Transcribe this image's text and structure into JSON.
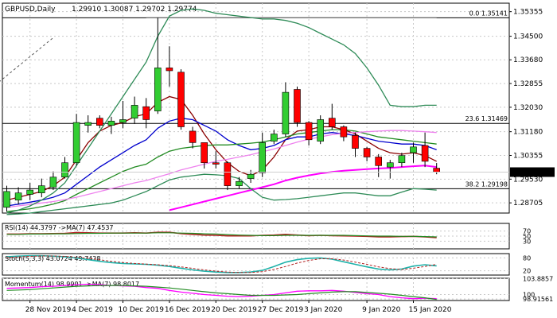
{
  "chart_data": {
    "type": "candlestick",
    "main": {
      "symbol_label": "GBPUSD,Daily",
      "ohlc_label": "1.29910 1.30087 1.29702 1.29774",
      "current_price": 1.29774,
      "current_price_label": "1.29774",
      "ylim": [
        1.2835,
        1.3565
      ],
      "y_ticks": [
        1.35355,
        1.345,
        1.3368,
        1.32855,
        1.3203,
        1.3118,
        1.30355,
        1.2953,
        1.28705
      ],
      "y_tick_labels": [
        "1.35355",
        "1.34500",
        "1.33680",
        "1.32855",
        "1.32030",
        "1.31180",
        "1.30355",
        "1.29530",
        "1.28705"
      ],
      "fib_levels": [
        {
          "label": "0.0 1.35141",
          "value": 1.35141
        },
        {
          "label": "23.6 1.31469",
          "value": 1.31469
        },
        {
          "label": "38.2 1.29198",
          "value": 1.29198
        }
      ],
      "candles": [
        {
          "date": "2019-11-26",
          "open": 1.2855,
          "high": 1.293,
          "low": 1.284,
          "close": 1.291
        },
        {
          "date": "2019-11-27",
          "open": 1.288,
          "high": 1.2925,
          "low": 1.2865,
          "close": 1.2905
        },
        {
          "date": "2019-11-28",
          "open": 1.29,
          "high": 1.294,
          "low": 1.288,
          "close": 1.2915
        },
        {
          "date": "2019-11-29",
          "open": 1.2905,
          "high": 1.2955,
          "low": 1.289,
          "close": 1.293
        },
        {
          "date": "2019-12-02",
          "open": 1.2925,
          "high": 1.298,
          "low": 1.2915,
          "close": 1.296
        },
        {
          "date": "2019-12-03",
          "open": 1.296,
          "high": 1.303,
          "low": 1.2955,
          "close": 1.301
        },
        {
          "date": "2019-12-04",
          "open": 1.301,
          "high": 1.318,
          "low": 1.3,
          "close": 1.315
        },
        {
          "date": "2019-12-05",
          "open": 1.314,
          "high": 1.3175,
          "low": 1.3115,
          "close": 1.315
        },
        {
          "date": "2019-12-06",
          "open": 1.3165,
          "high": 1.3175,
          "low": 1.313,
          "close": 1.314
        },
        {
          "date": "2019-12-09",
          "open": 1.314,
          "high": 1.317,
          "low": 1.311,
          "close": 1.3155
        },
        {
          "date": "2019-12-10",
          "open": 1.315,
          "high": 1.3225,
          "low": 1.313,
          "close": 1.316
        },
        {
          "date": "2019-12-11",
          "open": 1.3165,
          "high": 1.324,
          "low": 1.3145,
          "close": 1.321
        },
        {
          "date": "2019-12-12",
          "open": 1.3205,
          "high": 1.3235,
          "low": 1.313,
          "close": 1.316
        },
        {
          "date": "2019-12-13",
          "open": 1.319,
          "high": 1.3515,
          "low": 1.318,
          "close": 1.334
        },
        {
          "date": "2019-12-16",
          "open": 1.334,
          "high": 1.3415,
          "low": 1.3275,
          "close": 1.333
        },
        {
          "date": "2019-12-17",
          "open": 1.3325,
          "high": 1.3335,
          "low": 1.3125,
          "close": 1.3135
        },
        {
          "date": "2019-12-18",
          "open": 1.312,
          "high": 1.3135,
          "low": 1.306,
          "close": 1.308
        },
        {
          "date": "2019-12-19",
          "open": 1.308,
          "high": 1.3075,
          "low": 1.299,
          "close": 1.301
        },
        {
          "date": "2019-12-20",
          "open": 1.301,
          "high": 1.305,
          "low": 1.299,
          "close": 1.3005
        },
        {
          "date": "2019-12-23",
          "open": 1.301,
          "high": 1.3015,
          "low": 1.2915,
          "close": 1.293
        },
        {
          "date": "2019-12-24",
          "open": 1.293,
          "high": 1.296,
          "low": 1.292,
          "close": 1.2945
        },
        {
          "date": "2019-12-26",
          "open": 1.2955,
          "high": 1.2985,
          "low": 1.294,
          "close": 1.297
        },
        {
          "date": "2019-12-27",
          "open": 1.2975,
          "high": 1.3115,
          "low": 1.296,
          "close": 1.308
        },
        {
          "date": "2019-12-30",
          "open": 1.3085,
          "high": 1.3125,
          "low": 1.3075,
          "close": 1.311
        },
        {
          "date": "2019-12-31",
          "open": 1.311,
          "high": 1.329,
          "low": 1.31,
          "close": 1.3255
        },
        {
          "date": "2020-01-01",
          "open": 1.3265,
          "high": 1.3275,
          "low": 1.3135,
          "close": 1.315
        },
        {
          "date": "2020-01-02",
          "open": 1.315,
          "high": 1.3155,
          "low": 1.307,
          "close": 1.309
        },
        {
          "date": "2020-01-03",
          "open": 1.3085,
          "high": 1.3175,
          "low": 1.3075,
          "close": 1.316
        },
        {
          "date": "2020-01-06",
          "open": 1.3165,
          "high": 1.3215,
          "low": 1.3125,
          "close": 1.3135
        },
        {
          "date": "2020-01-07",
          "open": 1.3135,
          "high": 1.314,
          "low": 1.3085,
          "close": 1.31
        },
        {
          "date": "2020-01-08",
          "open": 1.3105,
          "high": 1.3115,
          "low": 1.303,
          "close": 1.306
        },
        {
          "date": "2020-01-09",
          "open": 1.306,
          "high": 1.3065,
          "low": 1.3015,
          "close": 1.303
        },
        {
          "date": "2020-01-10",
          "open": 1.303,
          "high": 1.304,
          "low": 1.296,
          "close": 1.3
        },
        {
          "date": "2020-01-13",
          "open": 1.2995,
          "high": 1.302,
          "low": 1.2955,
          "close": 1.301
        },
        {
          "date": "2020-01-14",
          "open": 1.301,
          "high": 1.3045,
          "low": 1.2995,
          "close": 1.3035
        },
        {
          "date": "2020-01-15",
          "open": 1.3045,
          "high": 1.308,
          "low": 1.301,
          "close": 1.3065
        },
        {
          "date": "2020-01-16",
          "open": 1.307,
          "high": 1.3115,
          "low": 1.2995,
          "close": 1.3015
        },
        {
          "date": "2020-01-17",
          "open": 1.2991,
          "high": 1.3009,
          "low": 1.297,
          "close": 1.2977
        }
      ],
      "x_tick_labels": [
        {
          "label": "28 Nov 2019",
          "index": 2
        },
        {
          "label": "4 Dec 2019",
          "index": 6
        },
        {
          "label": "10 Dec 2019",
          "index": 10
        },
        {
          "label": "16 Dec 2019",
          "index": 14
        },
        {
          "label": "20 Dec 2019",
          "index": 18
        },
        {
          "label": "27 Dec 2019",
          "index": 22
        },
        {
          "label": "3 Jan 2020",
          "index": 26
        },
        {
          "label": "9 Jan 2020",
          "index": 31
        },
        {
          "label": "15 Jan 2020",
          "index": 35
        }
      ],
      "overlays": [
        {
          "color": "#8b0000",
          "values": [
            1.288,
            1.289,
            1.29,
            1.291,
            1.293,
            1.296,
            1.302,
            1.308,
            1.312,
            1.314,
            1.315,
            1.317,
            1.318,
            1.322,
            1.324,
            1.323,
            1.3175,
            1.311,
            1.3055,
            1.301,
            1.298,
            1.2965,
            1.2985,
            1.303,
            1.309,
            1.312,
            1.3125,
            1.3135,
            1.3135,
            1.3125,
            1.311,
            1.3085,
            1.306,
            1.3045,
            1.304,
            1.3045,
            1.3035,
            1.3015
          ]
        },
        {
          "color": "#0000cd",
          "values": [
            1.286,
            1.2866,
            1.2873,
            1.288,
            1.289,
            1.2905,
            1.2935,
            1.2965,
            1.2995,
            1.302,
            1.3045,
            1.307,
            1.309,
            1.313,
            1.3155,
            1.3165,
            1.316,
            1.314,
            1.312,
            1.309,
            1.307,
            1.3055,
            1.306,
            1.307,
            1.309,
            1.31,
            1.31,
            1.311,
            1.3115,
            1.311,
            1.3105,
            1.3095,
            1.3085,
            1.308,
            1.3075,
            1.3075,
            1.307,
            1.3055
          ]
        },
        {
          "color": "#228b22",
          "values": [
            1.284,
            1.2845,
            1.285,
            1.2857,
            1.2866,
            1.2878,
            1.29,
            1.292,
            1.294,
            1.296,
            1.298,
            1.2995,
            1.3005,
            1.303,
            1.305,
            1.306,
            1.3065,
            1.307,
            1.3072,
            1.3072,
            1.3075,
            1.3078,
            1.3082,
            1.309,
            1.31,
            1.311,
            1.3115,
            1.312,
            1.3125,
            1.3125,
            1.312,
            1.311,
            1.31,
            1.3095,
            1.309,
            1.3085,
            1.308,
            1.3075
          ]
        },
        {
          "color": "#ee82ee",
          "values": [
            1.2855,
            1.286,
            1.2865,
            1.287,
            1.2875,
            1.2882,
            1.289,
            1.29,
            1.291,
            1.292,
            1.293,
            1.294,
            1.2948,
            1.296,
            1.2972,
            1.2985,
            1.2995,
            1.3005,
            1.3015,
            1.3022,
            1.303,
            1.3038,
            1.3048,
            1.3058,
            1.307,
            1.3082,
            1.3092,
            1.31,
            1.3108,
            1.3112,
            1.3115,
            1.3118,
            1.312,
            1.3122,
            1.3122,
            1.312,
            1.3118,
            1.3115
          ]
        },
        {
          "color": "#ff00ff",
          "values": [
            null,
            null,
            null,
            null,
            null,
            null,
            null,
            null,
            null,
            null,
            null,
            null,
            null,
            null,
            1.2845,
            1.2855,
            1.2865,
            1.2875,
            1.2885,
            1.2895,
            1.2905,
            1.2915,
            1.2925,
            1.2935,
            1.2948,
            1.2958,
            1.2966,
            1.2973,
            1.2978,
            1.2982,
            1.2985,
            1.2988,
            1.299,
            1.2992,
            1.2995,
            1.2998,
            1.3,
            1.2995
          ]
        },
        {
          "color": "#2e8b57",
          "values": [
            1.2835,
            1.2845,
            1.286,
            1.288,
            1.2905,
            1.294,
            1.3,
            1.306,
            1.312,
            1.318,
            1.324,
            1.33,
            1.336,
            1.345,
            1.352,
            1.354,
            1.3545,
            1.354,
            1.353,
            1.3525,
            1.352,
            1.3515,
            1.351,
            1.351,
            1.3505,
            1.3495,
            1.348,
            1.346,
            1.344,
            1.342,
            1.339,
            1.334,
            1.328,
            1.321,
            1.3205,
            1.3205,
            1.321,
            1.321
          ]
        },
        {
          "color": "#2e8b57",
          "values": [
            1.283,
            1.2832,
            1.2835,
            1.284,
            1.2845,
            1.285,
            1.2855,
            1.286,
            1.2865,
            1.287,
            1.288,
            1.2895,
            1.291,
            1.293,
            1.295,
            1.296,
            1.2965,
            1.297,
            1.2968,
            1.2965,
            1.2955,
            1.292,
            1.289,
            1.288,
            1.2882,
            1.2885,
            1.289,
            1.2895,
            1.29,
            1.2905,
            1.2905,
            1.29,
            1.2895,
            1.2895,
            1.2908,
            1.292,
            1.2918,
            1.2915
          ]
        }
      ],
      "trend_lines": [
        {
          "x1_index": -1,
          "y1": 1.328,
          "x2_index": 4,
          "y2": 1.3445,
          "color": "#555555",
          "dashed": true
        },
        {
          "x1_index": 12,
          "y1": 1.3515,
          "x2_index": 37,
          "y2": 1.3515,
          "color": "#888888",
          "dashed": false
        }
      ]
    },
    "rsi": {
      "label": "RSI(14) 44.3797 ->MA(7) 47.4537",
      "ylim": [
        0,
        100
      ],
      "tick_labels": [
        "70",
        "50",
        "30"
      ],
      "tick_values": [
        70,
        50,
        30
      ],
      "rsi_values": [
        58,
        58,
        59,
        59,
        60,
        61,
        64,
        63,
        62,
        62,
        62,
        63,
        62,
        65,
        65,
        60,
        57,
        54,
        53,
        51,
        51,
        51,
        53,
        54,
        57,
        54,
        52,
        53,
        52,
        51,
        50,
        49,
        47,
        47,
        48,
        49,
        47,
        44
      ],
      "ma_values": [
        57,
        57,
        58,
        58,
        59,
        59,
        60,
        61,
        61,
        62,
        62,
        62,
        62,
        63,
        63,
        62,
        61,
        59,
        58,
        56,
        54,
        53,
        52,
        52,
        53,
        53,
        53,
        53,
        53,
        53,
        52,
        51,
        50,
        50,
        49,
        49,
        48,
        47
      ]
    },
    "stoch": {
      "label": "Stoch(5,3,3) 43.0724 49.7428",
      "ylim": [
        0,
        100
      ],
      "tick_labels": [
        "80",
        "20"
      ],
      "tick_values": [
        80,
        20
      ],
      "k_values": [
        85,
        88,
        90,
        90,
        88,
        85,
        80,
        72,
        64,
        58,
        54,
        52,
        50,
        46,
        40,
        32,
        24,
        18,
        14,
        12,
        12,
        14,
        22,
        40,
        60,
        72,
        78,
        80,
        74,
        62,
        50,
        38,
        28,
        24,
        28,
        42,
        48,
        43
      ],
      "d_values": [
        82,
        85,
        87,
        89,
        89,
        87,
        83,
        78,
        71,
        64,
        58,
        54,
        51,
        48,
        44,
        38,
        31,
        24,
        18,
        14,
        12,
        12,
        16,
        26,
        40,
        56,
        68,
        76,
        76,
        70,
        60,
        50,
        38,
        30,
        26,
        32,
        40,
        50
      ]
    },
    "momentum": {
      "label": "Momentum(14) 98.9901 ->MA(7) 98.8017",
      "ylim": [
        98.55,
        103.95
      ],
      "tick_labels": [
        "103.8857",
        "100",
        "98.91561"
      ],
      "tick_values": [
        103.8857,
        100,
        98.91561
      ],
      "momentum_values": [
        101.5,
        101.6,
        101.7,
        101.9,
        102.0,
        102.2,
        102.4,
        102.5,
        102.4,
        102.2,
        102.1,
        102.0,
        101.7,
        101.5,
        101.0,
        100.6,
        100.3,
        100.0,
        99.8,
        99.6,
        99.5,
        99.6,
        99.8,
        100.0,
        100.4,
        100.8,
        100.9,
        100.9,
        101.0,
        100.8,
        100.5,
        100.2,
        100.0,
        99.5,
        99.2,
        99.0,
        99.1,
        99.0
      ],
      "ma_values": [
        101.0,
        101.1,
        101.2,
        101.4,
        101.6,
        101.8,
        102.0,
        102.1,
        102.2,
        102.2,
        102.2,
        102.1,
        102.0,
        101.8,
        101.6,
        101.3,
        101.0,
        100.7,
        100.4,
        100.2,
        100.0,
        99.8,
        99.8,
        99.8,
        99.9,
        100.0,
        100.2,
        100.4,
        100.6,
        100.7,
        100.7,
        100.5,
        100.3,
        100.1,
        99.8,
        99.5,
        99.2,
        98.8
      ]
    },
    "colors": {
      "bull": "#32cd32",
      "bear": "#ff0000",
      "grid": "#c8c8c8",
      "rsi": "#b22222",
      "rsi_ma": "#228b22",
      "stoch_k": "#20b2aa",
      "stoch_d": "#b22222",
      "momentum": "#ff00ff",
      "momentum_ma": "#228b22",
      "fib": "#000000"
    }
  }
}
